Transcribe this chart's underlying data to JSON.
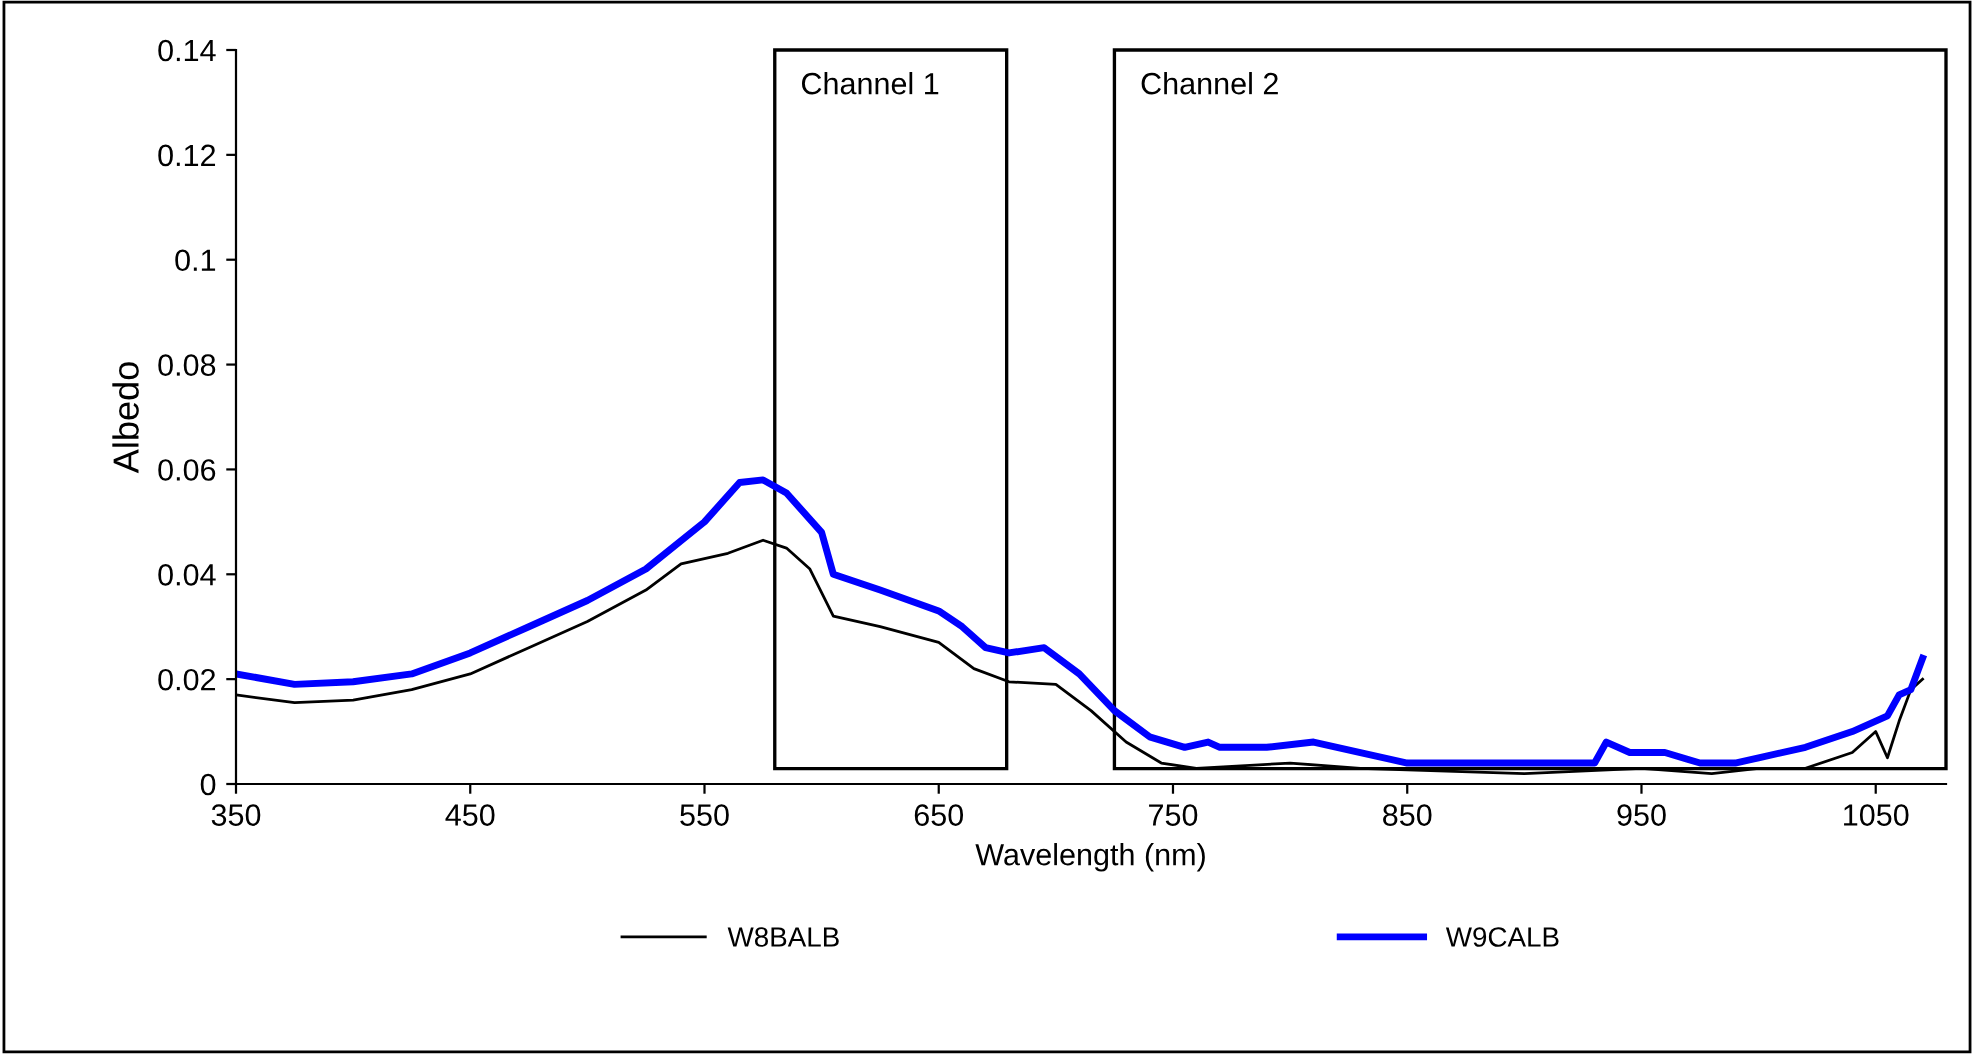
{
  "chart_data": {
    "type": "line",
    "xlabel": "Wavelength (nm)",
    "ylabel": "Albedo",
    "xlim": [
      350,
      1080
    ],
    "xticks": [
      350,
      450,
      550,
      650,
      750,
      850,
      950,
      1050
    ],
    "ylim": [
      0,
      0.14
    ],
    "yticks": [
      0,
      0.02,
      0.04,
      0.06,
      0.08,
      0.1,
      0.12,
      0.14
    ],
    "grid": false,
    "legend": "bottom",
    "marker": "none",
    "line_style": "solid",
    "bands": [
      {
        "axis": "x",
        "from": 580,
        "to": 679,
        "label": "Channel 1",
        "color": "#000000"
      },
      {
        "axis": "x",
        "from": 725,
        "to": 1080,
        "label": "Channel 2",
        "color": "#000000"
      }
    ],
    "series": [
      {
        "name": "W8BALB",
        "color": "#000000",
        "x": [
          350,
          375,
          400,
          425,
          450,
          475,
          500,
          525,
          540,
          560,
          575,
          585,
          595,
          605,
          625,
          650,
          665,
          680,
          700,
          715,
          730,
          745,
          760,
          800,
          830,
          900,
          950,
          980,
          1000,
          1020,
          1040,
          1050,
          1055,
          1060,
          1065,
          1070
        ],
        "values": [
          0.017,
          0.0155,
          0.016,
          0.018,
          0.021,
          0.026,
          0.031,
          0.037,
          0.042,
          0.044,
          0.0465,
          0.045,
          0.041,
          0.032,
          0.03,
          0.027,
          0.022,
          0.0195,
          0.019,
          0.014,
          0.008,
          0.004,
          0.003,
          0.004,
          0.003,
          0.002,
          0.003,
          0.002,
          0.003,
          0.003,
          0.006,
          0.01,
          0.005,
          0.012,
          0.018,
          0.02
        ]
      },
      {
        "name": "W9CALB",
        "color": "#0000ff",
        "x": [
          350,
          375,
          400,
          425,
          450,
          475,
          500,
          525,
          550,
          565,
          575,
          585,
          600,
          605,
          625,
          650,
          660,
          670,
          680,
          695,
          710,
          725,
          740,
          755,
          765,
          770,
          790,
          810,
          830,
          850,
          900,
          930,
          935,
          945,
          960,
          975,
          990,
          1000,
          1020,
          1040,
          1055,
          1060,
          1065,
          1070
        ],
        "values": [
          0.021,
          0.019,
          0.0195,
          0.021,
          0.025,
          0.03,
          0.035,
          0.041,
          0.05,
          0.0575,
          0.058,
          0.0555,
          0.048,
          0.04,
          0.037,
          0.033,
          0.03,
          0.026,
          0.025,
          0.026,
          0.021,
          0.014,
          0.009,
          0.007,
          0.008,
          0.007,
          0.007,
          0.008,
          0.006,
          0.004,
          0.004,
          0.004,
          0.008,
          0.006,
          0.006,
          0.004,
          0.004,
          0.005,
          0.007,
          0.01,
          0.013,
          0.017,
          0.018,
          0.024
        ]
      }
    ]
  }
}
